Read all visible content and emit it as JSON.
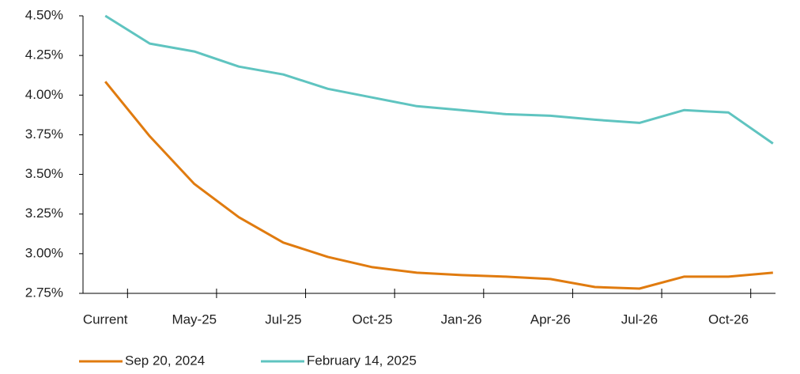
{
  "chart_data": {
    "type": "line",
    "categories": [
      "Current",
      null,
      "May-25",
      null,
      "Jul-25",
      null,
      "Oct-25",
      null,
      "Jan-26",
      null,
      "Apr-26",
      null,
      "Jul-26",
      null,
      "Oct-26",
      null
    ],
    "series": [
      {
        "name": "Sep 20, 2024",
        "color": "#e07b0f",
        "values": [
          4.085,
          3.74,
          3.44,
          3.23,
          3.07,
          2.98,
          2.915,
          2.88,
          2.865,
          2.855,
          2.84,
          2.79,
          2.78,
          2.855,
          2.855,
          2.88
        ]
      },
      {
        "name": "February 14, 2025",
        "color": "#5fc4c0",
        "values": [
          4.5,
          4.325,
          4.275,
          4.18,
          4.13,
          4.04,
          3.985,
          3.93,
          3.905,
          3.88,
          3.87,
          3.845,
          3.825,
          3.905,
          3.89,
          3.695
        ]
      }
    ],
    "ylim": [
      2.75,
      4.5
    ],
    "yticks": [
      {
        "value": 2.75,
        "label": "2.75%"
      },
      {
        "value": 3.0,
        "label": "3.00%"
      },
      {
        "value": 3.25,
        "label": "3.25%"
      },
      {
        "value": 3.5,
        "label": "3.50%"
      },
      {
        "value": 3.75,
        "label": "3.75%"
      },
      {
        "value": 4.0,
        "label": "4.00%"
      },
      {
        "value": 4.25,
        "label": "4.25%"
      },
      {
        "value": 4.5,
        "label": "4.50%"
      }
    ],
    "legend": "bottom-left"
  }
}
